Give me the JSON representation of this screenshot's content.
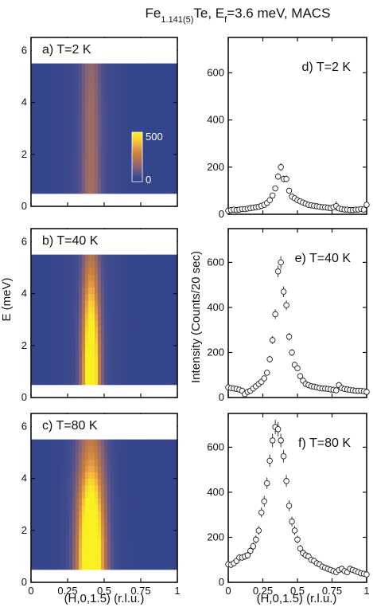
{
  "figure": {
    "title_main": "Fe",
    "title_sub": "1.141(5)",
    "title_rest": "Te, E",
    "title_sub2": "f",
    "title_end": "=3.6 meV, MACS"
  },
  "colorbar": {
    "max_label": "500",
    "min_label": "0",
    "colors": [
      "#28408a",
      "#4a4f8e",
      "#80607a",
      "#a8705a",
      "#c8803c",
      "#e8a048",
      "#f8d030",
      "#f8f020"
    ]
  },
  "chart_data": [
    {
      "type": "heatmap",
      "panel": "a",
      "title": "a) T=2 K",
      "xlabel": "",
      "ylabel": "",
      "xlim": [
        0,
        1
      ],
      "ylim": [
        0,
        6.5
      ],
      "xticks": [
        "0",
        "0.25",
        "0.5",
        "0.75",
        "1"
      ],
      "yticks": [
        "0",
        "2",
        "4",
        "6"
      ],
      "data_range": [
        0.5,
        5.5
      ],
      "h_range": [
        0,
        1
      ],
      "colorbar_range": [
        0,
        500
      ],
      "profile": {
        "center": 0.41,
        "width": 0.045,
        "peak_vs_E": [
          [
            0.5,
            160
          ],
          [
            2,
            150
          ],
          [
            4,
            140
          ],
          [
            5.5,
            120
          ]
        ]
      }
    },
    {
      "type": "heatmap",
      "panel": "b",
      "title": "b) T=40 K",
      "xlabel": "",
      "ylabel": "E (meV)",
      "xlim": [
        0,
        1
      ],
      "ylim": [
        0,
        6.5
      ],
      "xticks": [
        "0",
        "0.25",
        "0.5",
        "0.75",
        "1"
      ],
      "yticks": [
        "0",
        "2",
        "4",
        "6"
      ],
      "data_range": [
        0.5,
        5.5
      ],
      "h_range": [
        0,
        1
      ],
      "colorbar_range": [
        0,
        500
      ],
      "profile": {
        "center": 0.41,
        "width": 0.04,
        "peak_vs_E": [
          [
            0.5,
            620
          ],
          [
            1.5,
            600
          ],
          [
            2.5,
            520
          ],
          [
            3.5,
            400
          ],
          [
            4.5,
            280
          ],
          [
            5.5,
            180
          ]
        ]
      }
    },
    {
      "type": "heatmap",
      "panel": "c",
      "title": "c) T=80 K",
      "xlabel": "(H,0,1.5) (r.l.u.)",
      "ylabel": "",
      "xlim": [
        0,
        1
      ],
      "ylim": [
        0,
        6.5
      ],
      "xticks": [
        "0",
        "0.25",
        "0.5",
        "0.75",
        "1"
      ],
      "yticks": [
        "0",
        "2",
        "4",
        "6"
      ],
      "data_range": [
        0.5,
        5.5
      ],
      "h_range": [
        0,
        1
      ],
      "colorbar_range": [
        0,
        500
      ],
      "profile": {
        "center": 0.41,
        "width": 0.06,
        "peak_vs_E": [
          [
            0.5,
            720
          ],
          [
            1.5,
            700
          ],
          [
            2.5,
            600
          ],
          [
            3.5,
            450
          ],
          [
            4.5,
            300
          ],
          [
            5.5,
            200
          ]
        ]
      }
    },
    {
      "type": "scatter",
      "panel": "d",
      "title": "d) T=2 K",
      "xlabel": "",
      "ylabel": "",
      "xlim": [
        0,
        1
      ],
      "ylim": [
        0,
        750
      ],
      "xticks": [
        "0",
        "0.25",
        "0.5",
        "0.75",
        "1"
      ],
      "yticks": [
        "0",
        "200",
        "400",
        "600"
      ],
      "x": [
        0.0,
        0.02,
        0.04,
        0.06,
        0.08,
        0.1,
        0.12,
        0.14,
        0.16,
        0.18,
        0.2,
        0.22,
        0.24,
        0.26,
        0.28,
        0.3,
        0.32,
        0.34,
        0.36,
        0.38,
        0.4,
        0.42,
        0.44,
        0.46,
        0.48,
        0.5,
        0.52,
        0.54,
        0.56,
        0.58,
        0.6,
        0.62,
        0.64,
        0.66,
        0.68,
        0.7,
        0.72,
        0.74,
        0.76,
        0.78,
        0.8,
        0.82,
        0.84,
        0.86,
        0.88,
        0.9,
        0.92,
        0.94,
        0.96,
        0.98,
        1.0
      ],
      "y": [
        15,
        18,
        20,
        18,
        20,
        22,
        22,
        24,
        26,
        28,
        30,
        32,
        36,
        40,
        48,
        60,
        80,
        110,
        160,
        200,
        150,
        150,
        100,
        75,
        68,
        60,
        55,
        50,
        45,
        40,
        38,
        36,
        34,
        32,
        30,
        30,
        28,
        26,
        30,
        35,
        25,
        22,
        20,
        20,
        18,
        18,
        20,
        20,
        22,
        20,
        40
      ],
      "err": [
        8,
        8,
        8,
        8,
        8,
        8,
        8,
        8,
        8,
        8,
        8,
        8,
        9,
        9,
        9,
        10,
        11,
        12,
        14,
        16,
        14,
        14,
        12,
        10,
        10,
        10,
        9,
        9,
        9,
        9,
        9,
        9,
        9,
        9,
        9,
        9,
        9,
        9,
        9,
        20,
        9,
        9,
        9,
        9,
        9,
        9,
        9,
        9,
        9,
        9,
        14
      ]
    },
    {
      "type": "scatter",
      "panel": "e",
      "title": "e) T=40 K",
      "xlabel": "",
      "ylabel": "Intensity (Counts/20 sec)",
      "xlim": [
        0,
        1
      ],
      "ylim": [
        0,
        750
      ],
      "xticks": [
        "0",
        "0.25",
        "0.5",
        "0.75",
        "1"
      ],
      "yticks": [
        "0",
        "200",
        "400",
        "600"
      ],
      "x": [
        0.0,
        0.02,
        0.04,
        0.06,
        0.08,
        0.1,
        0.12,
        0.14,
        0.16,
        0.18,
        0.2,
        0.22,
        0.24,
        0.26,
        0.28,
        0.3,
        0.32,
        0.34,
        0.36,
        0.38,
        0.4,
        0.42,
        0.44,
        0.46,
        0.48,
        0.5,
        0.52,
        0.54,
        0.56,
        0.58,
        0.6,
        0.62,
        0.64,
        0.66,
        0.68,
        0.7,
        0.72,
        0.74,
        0.76,
        0.78,
        0.8,
        0.82,
        0.84,
        0.86,
        0.88,
        0.9,
        0.92,
        0.94,
        0.96,
        0.98,
        1.0
      ],
      "y": [
        45,
        42,
        40,
        38,
        35,
        30,
        15,
        25,
        30,
        40,
        50,
        60,
        70,
        85,
        110,
        170,
        255,
        370,
        560,
        600,
        470,
        410,
        270,
        200,
        145,
        130,
        95,
        75,
        60,
        55,
        50,
        48,
        45,
        42,
        40,
        40,
        38,
        36,
        34,
        32,
        55,
        42,
        38,
        36,
        34,
        32,
        30,
        30,
        30,
        28,
        25
      ],
      "err": [
        10,
        10,
        10,
        10,
        10,
        10,
        10,
        10,
        10,
        10,
        10,
        11,
        11,
        12,
        13,
        15,
        18,
        22,
        26,
        28,
        24,
        22,
        18,
        16,
        14,
        13,
        12,
        11,
        10,
        10,
        10,
        10,
        10,
        10,
        10,
        10,
        10,
        10,
        10,
        10,
        14,
        10,
        10,
        10,
        10,
        10,
        10,
        10,
        10,
        10,
        10
      ]
    },
    {
      "type": "scatter",
      "panel": "f",
      "title": "f) T=80 K",
      "xlabel": "(H,0,1.5) (r.l.u.)",
      "ylabel": "",
      "xlim": [
        0,
        1
      ],
      "ylim": [
        0,
        750
      ],
      "xticks": [
        "0",
        "0.25",
        "0.5",
        "0.75",
        "1"
      ],
      "yticks": [
        "0",
        "200",
        "400",
        "600"
      ],
      "x": [
        0.0,
        0.02,
        0.04,
        0.06,
        0.08,
        0.1,
        0.12,
        0.14,
        0.16,
        0.18,
        0.2,
        0.22,
        0.24,
        0.26,
        0.28,
        0.3,
        0.32,
        0.34,
        0.36,
        0.38,
        0.4,
        0.42,
        0.44,
        0.46,
        0.48,
        0.5,
        0.52,
        0.54,
        0.56,
        0.58,
        0.6,
        0.62,
        0.64,
        0.66,
        0.68,
        0.7,
        0.72,
        0.74,
        0.76,
        0.78,
        0.8,
        0.82,
        0.84,
        0.86,
        0.88,
        0.9,
        0.92,
        0.94,
        0.96,
        0.98,
        1.0
      ],
      "y": [
        80,
        78,
        85,
        95,
        110,
        110,
        115,
        120,
        140,
        160,
        190,
        230,
        310,
        360,
        440,
        540,
        630,
        690,
        680,
        630,
        560,
        450,
        340,
        270,
        230,
        190,
        150,
        130,
        120,
        115,
        100,
        95,
        85,
        80,
        70,
        65,
        60,
        55,
        50,
        45,
        55,
        60,
        50,
        45,
        60,
        55,
        50,
        45,
        40,
        38,
        35
      ],
      "err": [
        14,
        14,
        14,
        14,
        15,
        15,
        15,
        15,
        16,
        17,
        18,
        20,
        22,
        24,
        26,
        28,
        30,
        32,
        32,
        30,
        28,
        26,
        24,
        22,
        20,
        18,
        17,
        16,
        15,
        15,
        14,
        14,
        14,
        14,
        13,
        13,
        13,
        13,
        12,
        12,
        13,
        13,
        12,
        12,
        13,
        13,
        12,
        12,
        12,
        12,
        12
      ]
    }
  ]
}
